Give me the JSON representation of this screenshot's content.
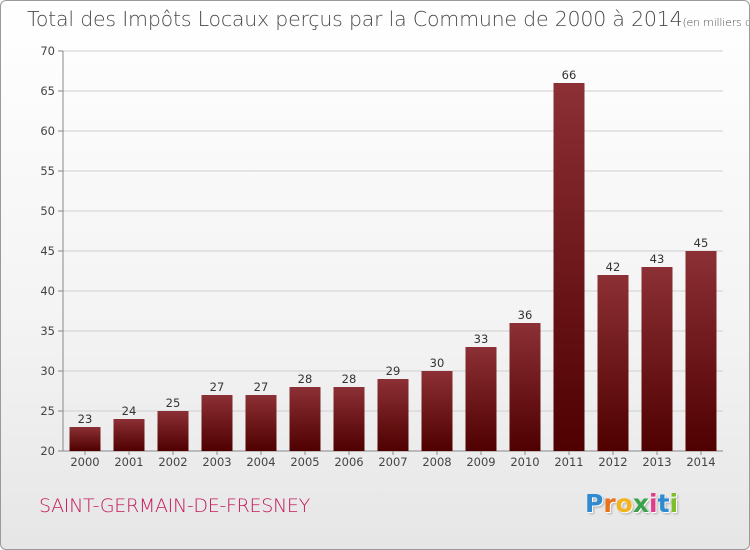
{
  "header": {
    "title": "Total des Impôts Locaux perçus par la Commune de 2000 à 2014",
    "unit": "(en milliers d'€)"
  },
  "footer": {
    "commune": "SAINT-GERMAIN-DE-FRESNEY",
    "logo_letters": [
      "P",
      "r",
      "o",
      "x",
      "i",
      "t",
      "i"
    ],
    "logo_colors": [
      "#2e8bd0",
      "#e8731a",
      "#f2b31c",
      "#3aa34a",
      "#e03c8a",
      "#2e8bd0",
      "#7bbf2a"
    ]
  },
  "colors": {
    "bar_top": "#8c3035",
    "bar_bottom": "#4f0000",
    "grid": "#cfcfcf",
    "axis": "#888888"
  },
  "chart_data": {
    "type": "bar",
    "title": "Total des Impôts Locaux perçus par la Commune de 2000 à 2014",
    "xlabel": "",
    "ylabel": "",
    "categories": [
      "2000",
      "2001",
      "2002",
      "2003",
      "2004",
      "2005",
      "2006",
      "2007",
      "2008",
      "2009",
      "2010",
      "2011",
      "2012",
      "2013",
      "2014"
    ],
    "values": [
      23,
      24,
      25,
      27,
      27,
      28,
      28,
      29,
      30,
      33,
      36,
      66,
      42,
      43,
      45
    ],
    "ylim": [
      20,
      70
    ],
    "yticks": [
      20,
      25,
      30,
      35,
      40,
      45,
      50,
      55,
      60,
      65,
      70
    ],
    "grid": true
  }
}
